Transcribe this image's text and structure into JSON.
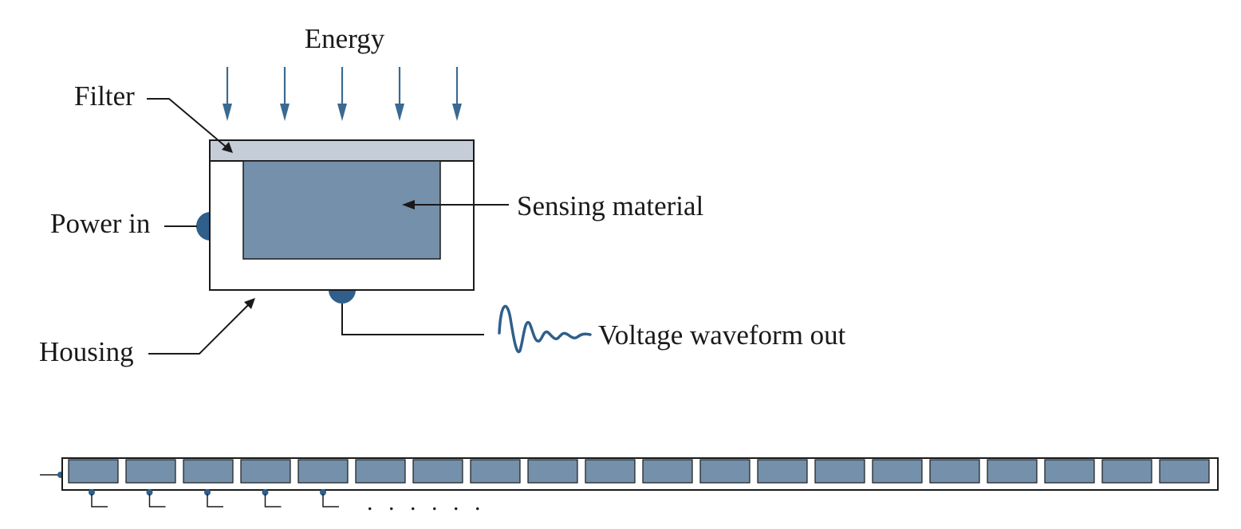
{
  "labels": {
    "energy": "Energy",
    "filter": "Filter",
    "sensing_material": "Sensing material",
    "power_in": "Power in",
    "housing": "Housing",
    "voltage_out": "Voltage waveform out"
  },
  "strip": {
    "element_count": 20,
    "connected_leads": 5,
    "continuation": ". . . . . ."
  },
  "colors": {
    "sensing_material": "#7490aa",
    "filter": "#c5cdd9",
    "accent_blue": "#2f5f8a",
    "outline": "#1a1a1a"
  }
}
